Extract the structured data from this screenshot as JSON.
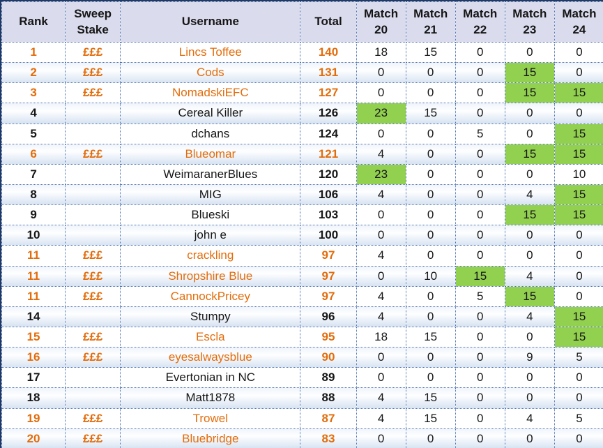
{
  "colors": {
    "accent_orange": "#e36c0a",
    "green_highlight": "#92d050",
    "header_bg": "#dadcee",
    "border_dotted_blue": "#4a6fae",
    "border_outer_navy": "#1f3864"
  },
  "table": {
    "columns": [
      {
        "label": "Rank",
        "sub": ""
      },
      {
        "label": "Sweep",
        "sub": "Stake"
      },
      {
        "label": "Username",
        "sub": ""
      },
      {
        "label": "Total",
        "sub": ""
      },
      {
        "label": "Match",
        "sub": "20"
      },
      {
        "label": "Match",
        "sub": "21"
      },
      {
        "label": "Match",
        "sub": "22"
      },
      {
        "label": "Match",
        "sub": "23"
      },
      {
        "label": "Match",
        "sub": "24"
      }
    ],
    "rows": [
      {
        "rank": "1",
        "stake": "£££",
        "username": "Lincs Toffee",
        "total": "140",
        "matches": [
          {
            "v": "18",
            "g": false
          },
          {
            "v": "15",
            "g": false
          },
          {
            "v": "0",
            "g": false
          },
          {
            "v": "0",
            "g": false
          },
          {
            "v": "0",
            "g": false
          }
        ]
      },
      {
        "rank": "2",
        "stake": "£££",
        "username": "Cods",
        "total": "131",
        "matches": [
          {
            "v": "0",
            "g": false
          },
          {
            "v": "0",
            "g": false
          },
          {
            "v": "0",
            "g": false
          },
          {
            "v": "15",
            "g": true
          },
          {
            "v": "0",
            "g": false
          }
        ]
      },
      {
        "rank": "3",
        "stake": "£££",
        "username": "NomadskiEFC",
        "total": "127",
        "matches": [
          {
            "v": "0",
            "g": false
          },
          {
            "v": "0",
            "g": false
          },
          {
            "v": "0",
            "g": false
          },
          {
            "v": "15",
            "g": true
          },
          {
            "v": "15",
            "g": true
          }
        ]
      },
      {
        "rank": "4",
        "stake": "",
        "username": "Cereal Killer",
        "total": "126",
        "matches": [
          {
            "v": "23",
            "g": true
          },
          {
            "v": "15",
            "g": false
          },
          {
            "v": "0",
            "g": false
          },
          {
            "v": "0",
            "g": false
          },
          {
            "v": "0",
            "g": false
          }
        ]
      },
      {
        "rank": "5",
        "stake": "",
        "username": "dchans",
        "total": "124",
        "matches": [
          {
            "v": "0",
            "g": false
          },
          {
            "v": "0",
            "g": false
          },
          {
            "v": "5",
            "g": false
          },
          {
            "v": "0",
            "g": false
          },
          {
            "v": "15",
            "g": true
          }
        ]
      },
      {
        "rank": "6",
        "stake": "£££",
        "username": "Blueomar",
        "total": "121",
        "matches": [
          {
            "v": "4",
            "g": false
          },
          {
            "v": "0",
            "g": false
          },
          {
            "v": "0",
            "g": false
          },
          {
            "v": "15",
            "g": true
          },
          {
            "v": "15",
            "g": true
          }
        ]
      },
      {
        "rank": "7",
        "stake": "",
        "username": "WeimaranerBlues",
        "total": "120",
        "matches": [
          {
            "v": "23",
            "g": true
          },
          {
            "v": "0",
            "g": false
          },
          {
            "v": "0",
            "g": false
          },
          {
            "v": "0",
            "g": false
          },
          {
            "v": "10",
            "g": false
          }
        ]
      },
      {
        "rank": "8",
        "stake": "",
        "username": "MIG",
        "total": "106",
        "matches": [
          {
            "v": "4",
            "g": false
          },
          {
            "v": "0",
            "g": false
          },
          {
            "v": "0",
            "g": false
          },
          {
            "v": "4",
            "g": false
          },
          {
            "v": "15",
            "g": true
          }
        ]
      },
      {
        "rank": "9",
        "stake": "",
        "username": "Blueski",
        "total": "103",
        "matches": [
          {
            "v": "0",
            "g": false
          },
          {
            "v": "0",
            "g": false
          },
          {
            "v": "0",
            "g": false
          },
          {
            "v": "15",
            "g": true
          },
          {
            "v": "15",
            "g": true
          }
        ]
      },
      {
        "rank": "10",
        "stake": "",
        "username": "john e",
        "total": "100",
        "matches": [
          {
            "v": "0",
            "g": false
          },
          {
            "v": "0",
            "g": false
          },
          {
            "v": "0",
            "g": false
          },
          {
            "v": "0",
            "g": false
          },
          {
            "v": "0",
            "g": false
          }
        ]
      },
      {
        "rank": "11",
        "stake": "£££",
        "username": "crackling",
        "total": "97",
        "matches": [
          {
            "v": "4",
            "g": false
          },
          {
            "v": "0",
            "g": false
          },
          {
            "v": "0",
            "g": false
          },
          {
            "v": "0",
            "g": false
          },
          {
            "v": "0",
            "g": false
          }
        ]
      },
      {
        "rank": "11",
        "stake": "£££",
        "username": "Shropshire Blue",
        "total": "97",
        "matches": [
          {
            "v": "0",
            "g": false
          },
          {
            "v": "10",
            "g": false
          },
          {
            "v": "15",
            "g": true
          },
          {
            "v": "4",
            "g": false
          },
          {
            "v": "0",
            "g": false
          }
        ]
      },
      {
        "rank": "11",
        "stake": "£££",
        "username": "CannockPricey",
        "total": "97",
        "matches": [
          {
            "v": "4",
            "g": false
          },
          {
            "v": "0",
            "g": false
          },
          {
            "v": "5",
            "g": false
          },
          {
            "v": "15",
            "g": true
          },
          {
            "v": "0",
            "g": false
          }
        ]
      },
      {
        "rank": "14",
        "stake": "",
        "username": "Stumpy",
        "total": "96",
        "matches": [
          {
            "v": "4",
            "g": false
          },
          {
            "v": "0",
            "g": false
          },
          {
            "v": "0",
            "g": false
          },
          {
            "v": "4",
            "g": false
          },
          {
            "v": "15",
            "g": true
          }
        ]
      },
      {
        "rank": "15",
        "stake": "£££",
        "username": "Escla",
        "total": "95",
        "matches": [
          {
            "v": "18",
            "g": false
          },
          {
            "v": "15",
            "g": false
          },
          {
            "v": "0",
            "g": false
          },
          {
            "v": "0",
            "g": false
          },
          {
            "v": "15",
            "g": true
          }
        ]
      },
      {
        "rank": "16",
        "stake": "£££",
        "username": "eyesalwaysblue",
        "total": "90",
        "matches": [
          {
            "v": "0",
            "g": false
          },
          {
            "v": "0",
            "g": false
          },
          {
            "v": "0",
            "g": false
          },
          {
            "v": "9",
            "g": false
          },
          {
            "v": "5",
            "g": false
          }
        ]
      },
      {
        "rank": "17",
        "stake": "",
        "username": "Evertonian in NC",
        "total": "89",
        "matches": [
          {
            "v": "0",
            "g": false
          },
          {
            "v": "0",
            "g": false
          },
          {
            "v": "0",
            "g": false
          },
          {
            "v": "0",
            "g": false
          },
          {
            "v": "0",
            "g": false
          }
        ]
      },
      {
        "rank": "18",
        "stake": "",
        "username": "Matt1878",
        "total": "88",
        "matches": [
          {
            "v": "4",
            "g": false
          },
          {
            "v": "15",
            "g": false
          },
          {
            "v": "0",
            "g": false
          },
          {
            "v": "0",
            "g": false
          },
          {
            "v": "0",
            "g": false
          }
        ]
      },
      {
        "rank": "19",
        "stake": "£££",
        "username": "Trowel",
        "total": "87",
        "matches": [
          {
            "v": "4",
            "g": false
          },
          {
            "v": "15",
            "g": false
          },
          {
            "v": "0",
            "g": false
          },
          {
            "v": "4",
            "g": false
          },
          {
            "v": "5",
            "g": false
          }
        ]
      },
      {
        "rank": "20",
        "stake": "£££",
        "username": "Bluebridge",
        "total": "83",
        "matches": [
          {
            "v": "0",
            "g": false
          },
          {
            "v": "0",
            "g": false
          },
          {
            "v": "0",
            "g": false
          },
          {
            "v": "0",
            "g": false
          },
          {
            "v": "0",
            "g": false
          }
        ]
      }
    ]
  }
}
